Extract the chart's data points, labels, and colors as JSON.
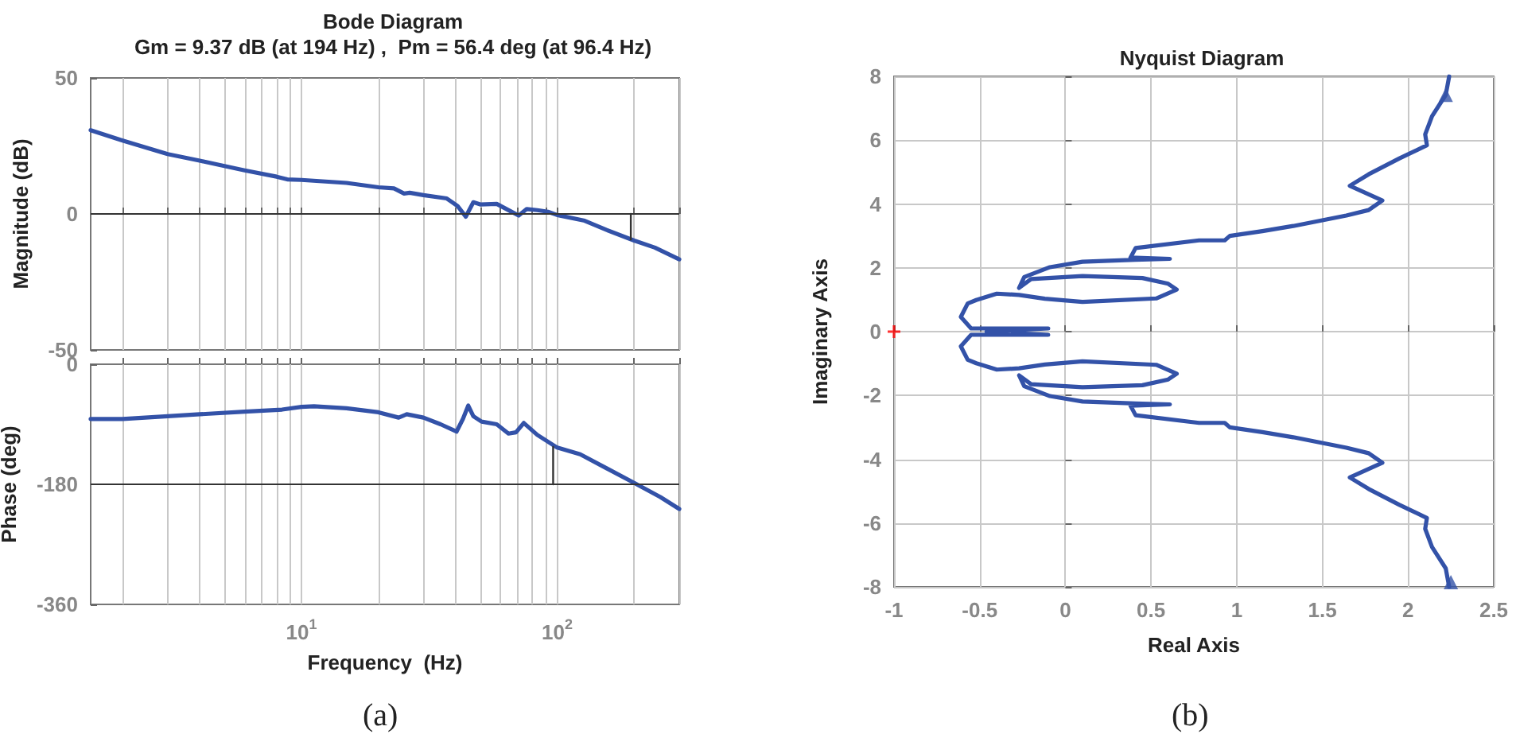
{
  "chart_data": [
    {
      "type": "line",
      "title": "Bode Diagram",
      "subtitle": "Gm = 9.37 dB (at 194 Hz) ,  Pm = 56.4 deg (at 96.4 Hz)",
      "ylabel": "Magnitude (dB)",
      "log": "x",
      "xlim": [
        1.5,
        300
      ],
      "xticks": [
        {
          "value": 2,
          "label": null
        },
        {
          "value": 3,
          "label": null
        },
        {
          "value": 4,
          "label": null
        },
        {
          "value": 5,
          "label": null
        },
        {
          "value": 6,
          "label": null
        },
        {
          "value": 7,
          "label": null
        },
        {
          "value": 8,
          "label": null
        },
        {
          "value": 9,
          "label": null
        },
        {
          "value": 10,
          "label": null
        },
        {
          "value": 20,
          "label": null
        },
        {
          "value": 30,
          "label": null
        },
        {
          "value": 40,
          "label": null
        },
        {
          "value": 50,
          "label": null
        },
        {
          "value": 60,
          "label": null
        },
        {
          "value": 70,
          "label": null
        },
        {
          "value": 80,
          "label": null
        },
        {
          "value": 90,
          "label": null
        },
        {
          "value": 100,
          "label": null
        },
        {
          "value": 200,
          "label": null
        },
        {
          "value": 300,
          "label": null
        }
      ],
      "ylim": [
        -50,
        50
      ],
      "yticks": [
        -50,
        0,
        50
      ],
      "grid": "x",
      "tick_labels": "y",
      "ref_lines": [
        {
          "axis": "y",
          "value": 0,
          "color": "#333333"
        }
      ],
      "series": [
        {
          "color": "#3352a8",
          "x": [
            1.5,
            2,
            3,
            4,
            5,
            6,
            8,
            8.8,
            10,
            15,
            20,
            23,
            25.2,
            26.5,
            30,
            37,
            40.8,
            43.9,
            47,
            50,
            58,
            65.7,
            70.7,
            76,
            83.6,
            92,
            100,
            128,
            156,
            200,
            241,
            300
          ],
          "values": [
            30.8,
            27,
            22,
            19.6,
            17.6,
            16,
            13.7,
            12.7,
            12.5,
            11.4,
            9.8,
            9.4,
            7.5,
            7.8,
            6.9,
            5.7,
            2.9,
            -1,
            4.3,
            3.5,
            3.7,
            1,
            -0.6,
            1.8,
            1.4,
            0.8,
            -0.4,
            -2.5,
            -5.9,
            -9.8,
            -12.4,
            -16.7
          ]
        },
        {
          "color": "#333333",
          "x": [
            194,
            194
          ],
          "values": [
            0,
            -9.4
          ]
        }
      ]
    },
    {
      "type": "line",
      "ylabel": "Phase (deg)",
      "xlabel": "Frequency  (Hz)",
      "annotations": [
        "(a)"
      ],
      "log": "x",
      "xlim": [
        1.5,
        300
      ],
      "xticks": [
        {
          "value": 2,
          "label": null
        },
        {
          "value": 3,
          "label": null
        },
        {
          "value": 4,
          "label": null
        },
        {
          "value": 5,
          "label": null
        },
        {
          "value": 6,
          "label": null
        },
        {
          "value": 7,
          "label": null
        },
        {
          "value": 8,
          "label": null
        },
        {
          "value": 9,
          "label": null
        },
        {
          "value": 10,
          "label": "10$^{1}$"
        },
        {
          "value": 20,
          "label": null
        },
        {
          "value": 30,
          "label": null
        },
        {
          "value": 40,
          "label": null
        },
        {
          "value": 50,
          "label": null
        },
        {
          "value": 60,
          "label": null
        },
        {
          "value": 70,
          "label": null
        },
        {
          "value": 80,
          "label": null
        },
        {
          "value": 90,
          "label": null
        },
        {
          "value": 100,
          "label": "10$^{2}$"
        },
        {
          "value": 200,
          "label": null
        },
        {
          "value": 300,
          "label": null
        }
      ],
      "ylim": [
        -360,
        0
      ],
      "yticks": [
        -360,
        -180,
        0
      ],
      "grid": "x",
      "ref_lines": [
        {
          "axis": "y",
          "value": -180,
          "color": "#333333"
        }
      ],
      "series": [
        {
          "color": "#3352a8",
          "x": [
            1.5,
            2,
            3,
            4,
            6,
            8.4,
            10,
            11.2,
            15,
            20,
            24,
            25.8,
            30,
            35,
            40.4,
            42.8,
            44.9,
            47,
            50.6,
            58,
            64.5,
            69,
            74,
            83.6,
            100,
            123,
            156,
            200,
            253,
            300
          ],
          "values": [
            -82,
            -82,
            -78,
            -75,
            -71,
            -68,
            -64,
            -63,
            -66,
            -72,
            -80,
            -75,
            -80,
            -90,
            -101,
            -82,
            -62,
            -78,
            -86,
            -90,
            -104,
            -102,
            -88,
            -106,
            -125,
            -135,
            -156,
            -178,
            -199,
            -217
          ]
        },
        {
          "color": "#333333",
          "x": [
            96.4,
            96.4
          ],
          "values": [
            -180,
            -124
          ]
        }
      ]
    },
    {
      "type": "line",
      "title": "Nyquist Diagram",
      "xlabel": "Real Axis",
      "ylabel": "Imaginary Axis",
      "annotations": [
        "(b)"
      ],
      "xlim": [
        -1,
        2.5
      ],
      "xticks": [
        -1,
        -0.5,
        0,
        0.5,
        1,
        1.5,
        2,
        2.5
      ],
      "ylim": [
        -8,
        8
      ],
      "yticks": [
        -8,
        -6,
        -4,
        -2,
        0,
        2,
        4,
        6,
        8
      ],
      "grid": true,
      "series": [
        {
          "color": "#3352a8",
          "x": [
            2.24,
            2.22,
            2.14,
            2.1,
            2.11,
            1.95,
            1.77,
            1.66,
            1.85,
            1.77,
            1.64,
            1.33,
            1.15,
            0.96,
            0.93,
            0.78,
            0.41,
            0.38,
            0.61,
            0.41,
            0.1,
            -0.09,
            -0.24,
            -0.27,
            -0.2,
            0.1,
            0.45,
            0.6,
            0.65,
            0.53,
            0.1,
            -0.12,
            -0.27,
            -0.4,
            -0.52,
            -0.57,
            -0.61,
            -0.55,
            -0.1,
            -0.46,
            -0.1,
            -0.55,
            -0.61,
            -0.57,
            -0.52,
            -0.4,
            -0.27,
            -0.12,
            0.1,
            0.53,
            0.65,
            0.6,
            0.45,
            0.1,
            -0.2,
            -0.27,
            -0.24,
            -0.09,
            0.1,
            0.41,
            0.61,
            0.38,
            0.41,
            0.78,
            0.93,
            0.96,
            1.15,
            1.33,
            1.64,
            1.77,
            1.85,
            1.66,
            1.77,
            1.95,
            2.11,
            2.1,
            2.14,
            2.22,
            2.24
          ],
          "values": [
            8,
            7.42,
            6.75,
            6.18,
            5.84,
            5.43,
            4.93,
            4.57,
            4.11,
            3.81,
            3.64,
            3.31,
            3.15,
            3,
            2.86,
            2.86,
            2.62,
            2.32,
            2.28,
            2.25,
            2.19,
            2.02,
            1.71,
            1.37,
            1.65,
            1.74,
            1.68,
            1.5,
            1.32,
            1.04,
            0.93,
            1.03,
            1.15,
            1.19,
            0.99,
            0.88,
            0.46,
            0.1,
            0.1,
            0,
            -0.1,
            -0.1,
            -0.46,
            -0.88,
            -0.99,
            -1.19,
            -1.15,
            -1.03,
            -0.93,
            -1.04,
            -1.32,
            -1.5,
            -1.68,
            -1.74,
            -1.65,
            -1.37,
            -1.71,
            -2.02,
            -2.19,
            -2.25,
            -2.28,
            -2.32,
            -2.62,
            -2.86,
            -2.86,
            -3,
            -3.15,
            -3.31,
            -3.64,
            -3.81,
            -4.11,
            -4.57,
            -4.93,
            -5.43,
            -5.84,
            -6.18,
            -6.75,
            -7.42,
            -8
          ]
        },
        {
          "type": "scatter",
          "marker": "triangle",
          "color": "#3352a8",
          "x": [
            2.22,
            2.25
          ],
          "values": [
            7.42,
            -7.85
          ]
        },
        {
          "type": "scatter",
          "marker": "cross",
          "color": "#ff0000",
          "x": [
            -1
          ],
          "values": [
            0
          ]
        }
      ]
    }
  ]
}
